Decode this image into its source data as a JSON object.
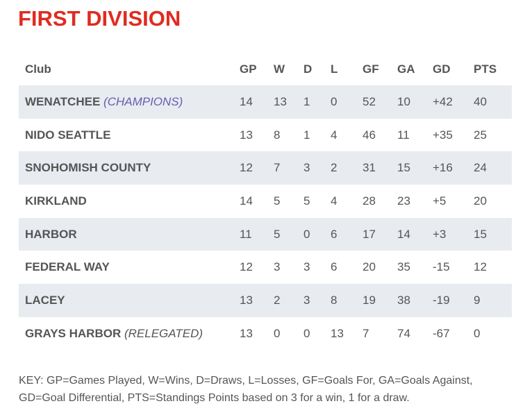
{
  "title": "FIRST DIVISION",
  "columns": [
    "Club",
    "GP",
    "W",
    "D",
    "L",
    "GF",
    "GA",
    "GD",
    "PTS"
  ],
  "rows": [
    {
      "club": "WENATCHEE",
      "note": "(CHAMPIONS)",
      "gp": "14",
      "w": "13",
      "d": "1",
      "l": "0",
      "gf": "52",
      "ga": "10",
      "gd": "+42",
      "pts": "40"
    },
    {
      "club": "NIDO SEATTLE",
      "note": "",
      "gp": "13",
      "w": "8",
      "d": "1",
      "l": "4",
      "gf": "46",
      "ga": "11",
      "gd": "+35",
      "pts": "25"
    },
    {
      "club": "SNOHOMISH COUNTY",
      "note": "",
      "gp": "12",
      "w": "7",
      "d": "3",
      "l": "2",
      "gf": "31",
      "ga": "15",
      "gd": "+16",
      "pts": "24"
    },
    {
      "club": "KIRKLAND",
      "note": "",
      "gp": "14",
      "w": "5",
      "d": "5",
      "l": "4",
      "gf": "28",
      "ga": "23",
      "gd": "+5",
      "pts": "20"
    },
    {
      "club": "HARBOR",
      "note": "",
      "gp": "11",
      "w": "5",
      "d": "0",
      "l": "6",
      "gf": "17",
      "ga": "14",
      "gd": "+3",
      "pts": "15"
    },
    {
      "club": "FEDERAL WAY",
      "note": "",
      "gp": "12",
      "w": "3",
      "d": "3",
      "l": "6",
      "gf": "20",
      "ga": "35",
      "gd": "-15",
      "pts": "12"
    },
    {
      "club": "LACEY",
      "note": "",
      "gp": "13",
      "w": "2",
      "d": "3",
      "l": "8",
      "gf": "19",
      "ga": "38",
      "gd": "-19",
      "pts": "9"
    },
    {
      "club": "GRAYS HARBOR",
      "note": "(RELEGATED)",
      "gp": "13",
      "w": "0",
      "d": "0",
      "l": "13",
      "gf": "7",
      "ga": "74",
      "gd": "-67",
      "pts": "0"
    }
  ],
  "key": "KEY: GP=Games Played, W=Wins, D=Draws, L=Losses, GF=Goals For, GA=Goals Against, GD=Goal Differential, PTS=Standings Points based on 3 for a win, 1 for a draw.",
  "colors": {
    "title": "#e02b20",
    "row_shade": "#e8ebf0",
    "champions_note": "#6b5bb0",
    "text": "#555555"
  }
}
